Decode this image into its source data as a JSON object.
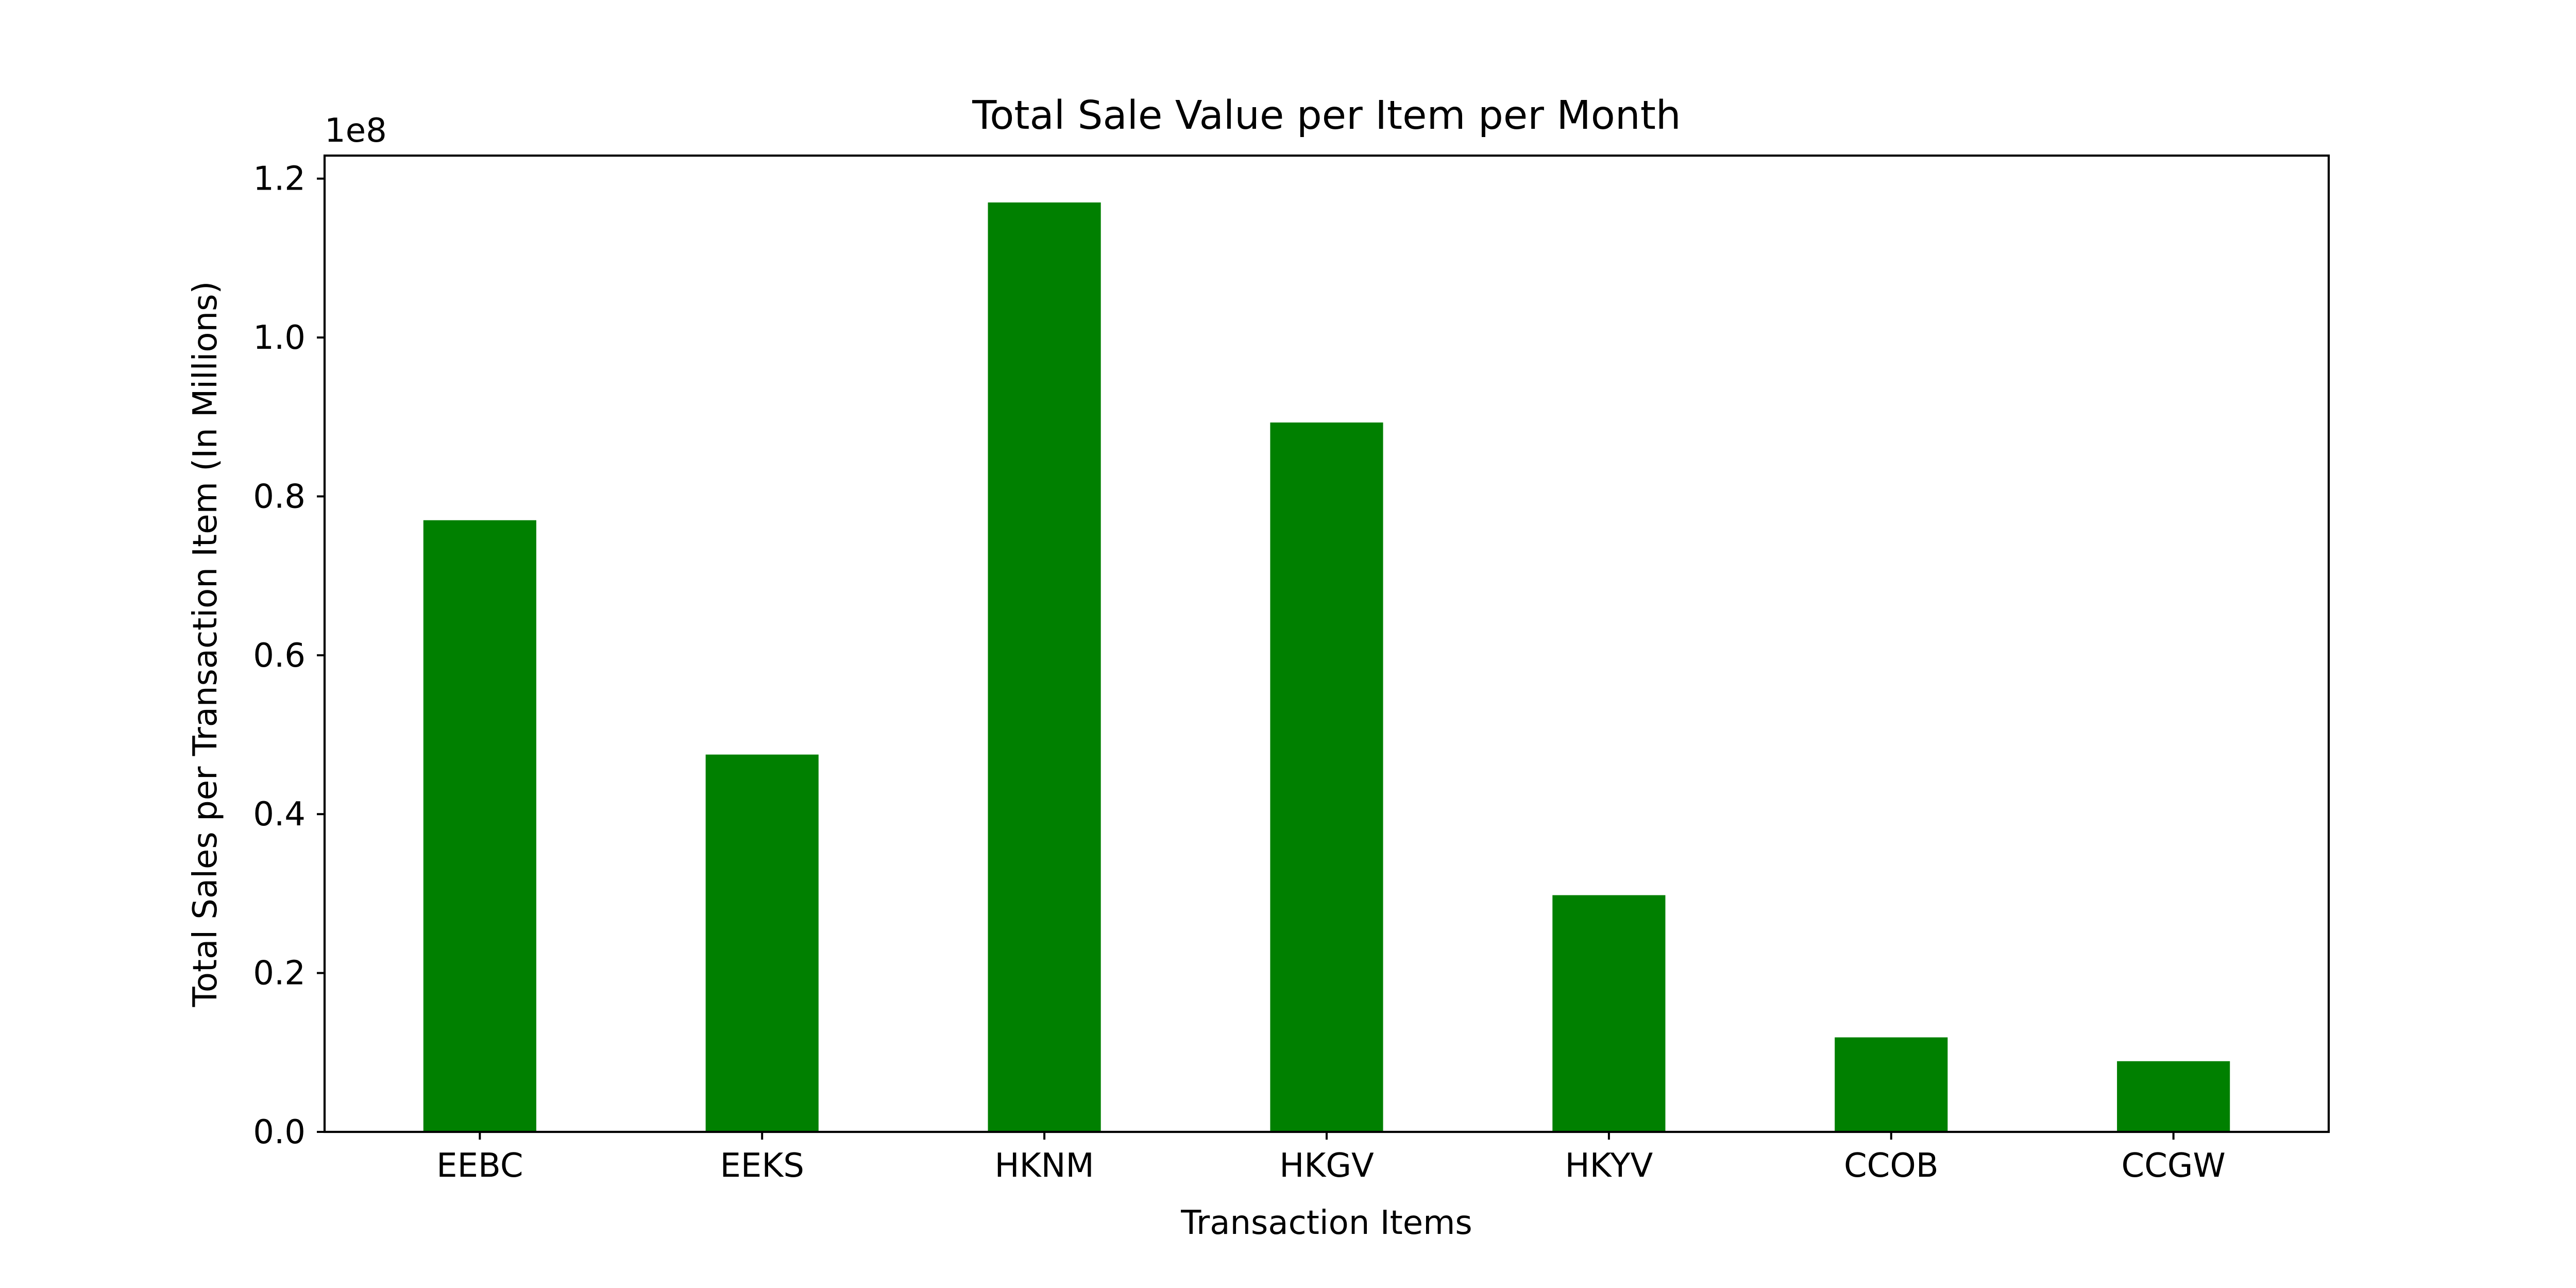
{
  "chart_data": {
    "type": "bar",
    "title": "Total Sale Value per Item per Month",
    "xlabel": "Transaction Items",
    "ylabel": "Total Sales per Transaction Item (In Millions)",
    "y_offset_label": "1e8",
    "categories": [
      "EEBC",
      "EEKS",
      "HKNM",
      "HKGV",
      "HKYV",
      "CCOB",
      "CCGW"
    ],
    "values": [
      77000000,
      47500000,
      117000000,
      89300000,
      29800000,
      11900000,
      8900000
    ],
    "ylim": [
      0,
      122900000
    ],
    "yticks": [
      0,
      20000000,
      40000000,
      60000000,
      80000000,
      100000000,
      120000000
    ],
    "ytick_labels": [
      "0.0",
      "0.2",
      "0.4",
      "0.6",
      "0.8",
      "1.0",
      "1.2"
    ],
    "bar_color": "#008000",
    "grid": false,
    "legend": "none"
  }
}
